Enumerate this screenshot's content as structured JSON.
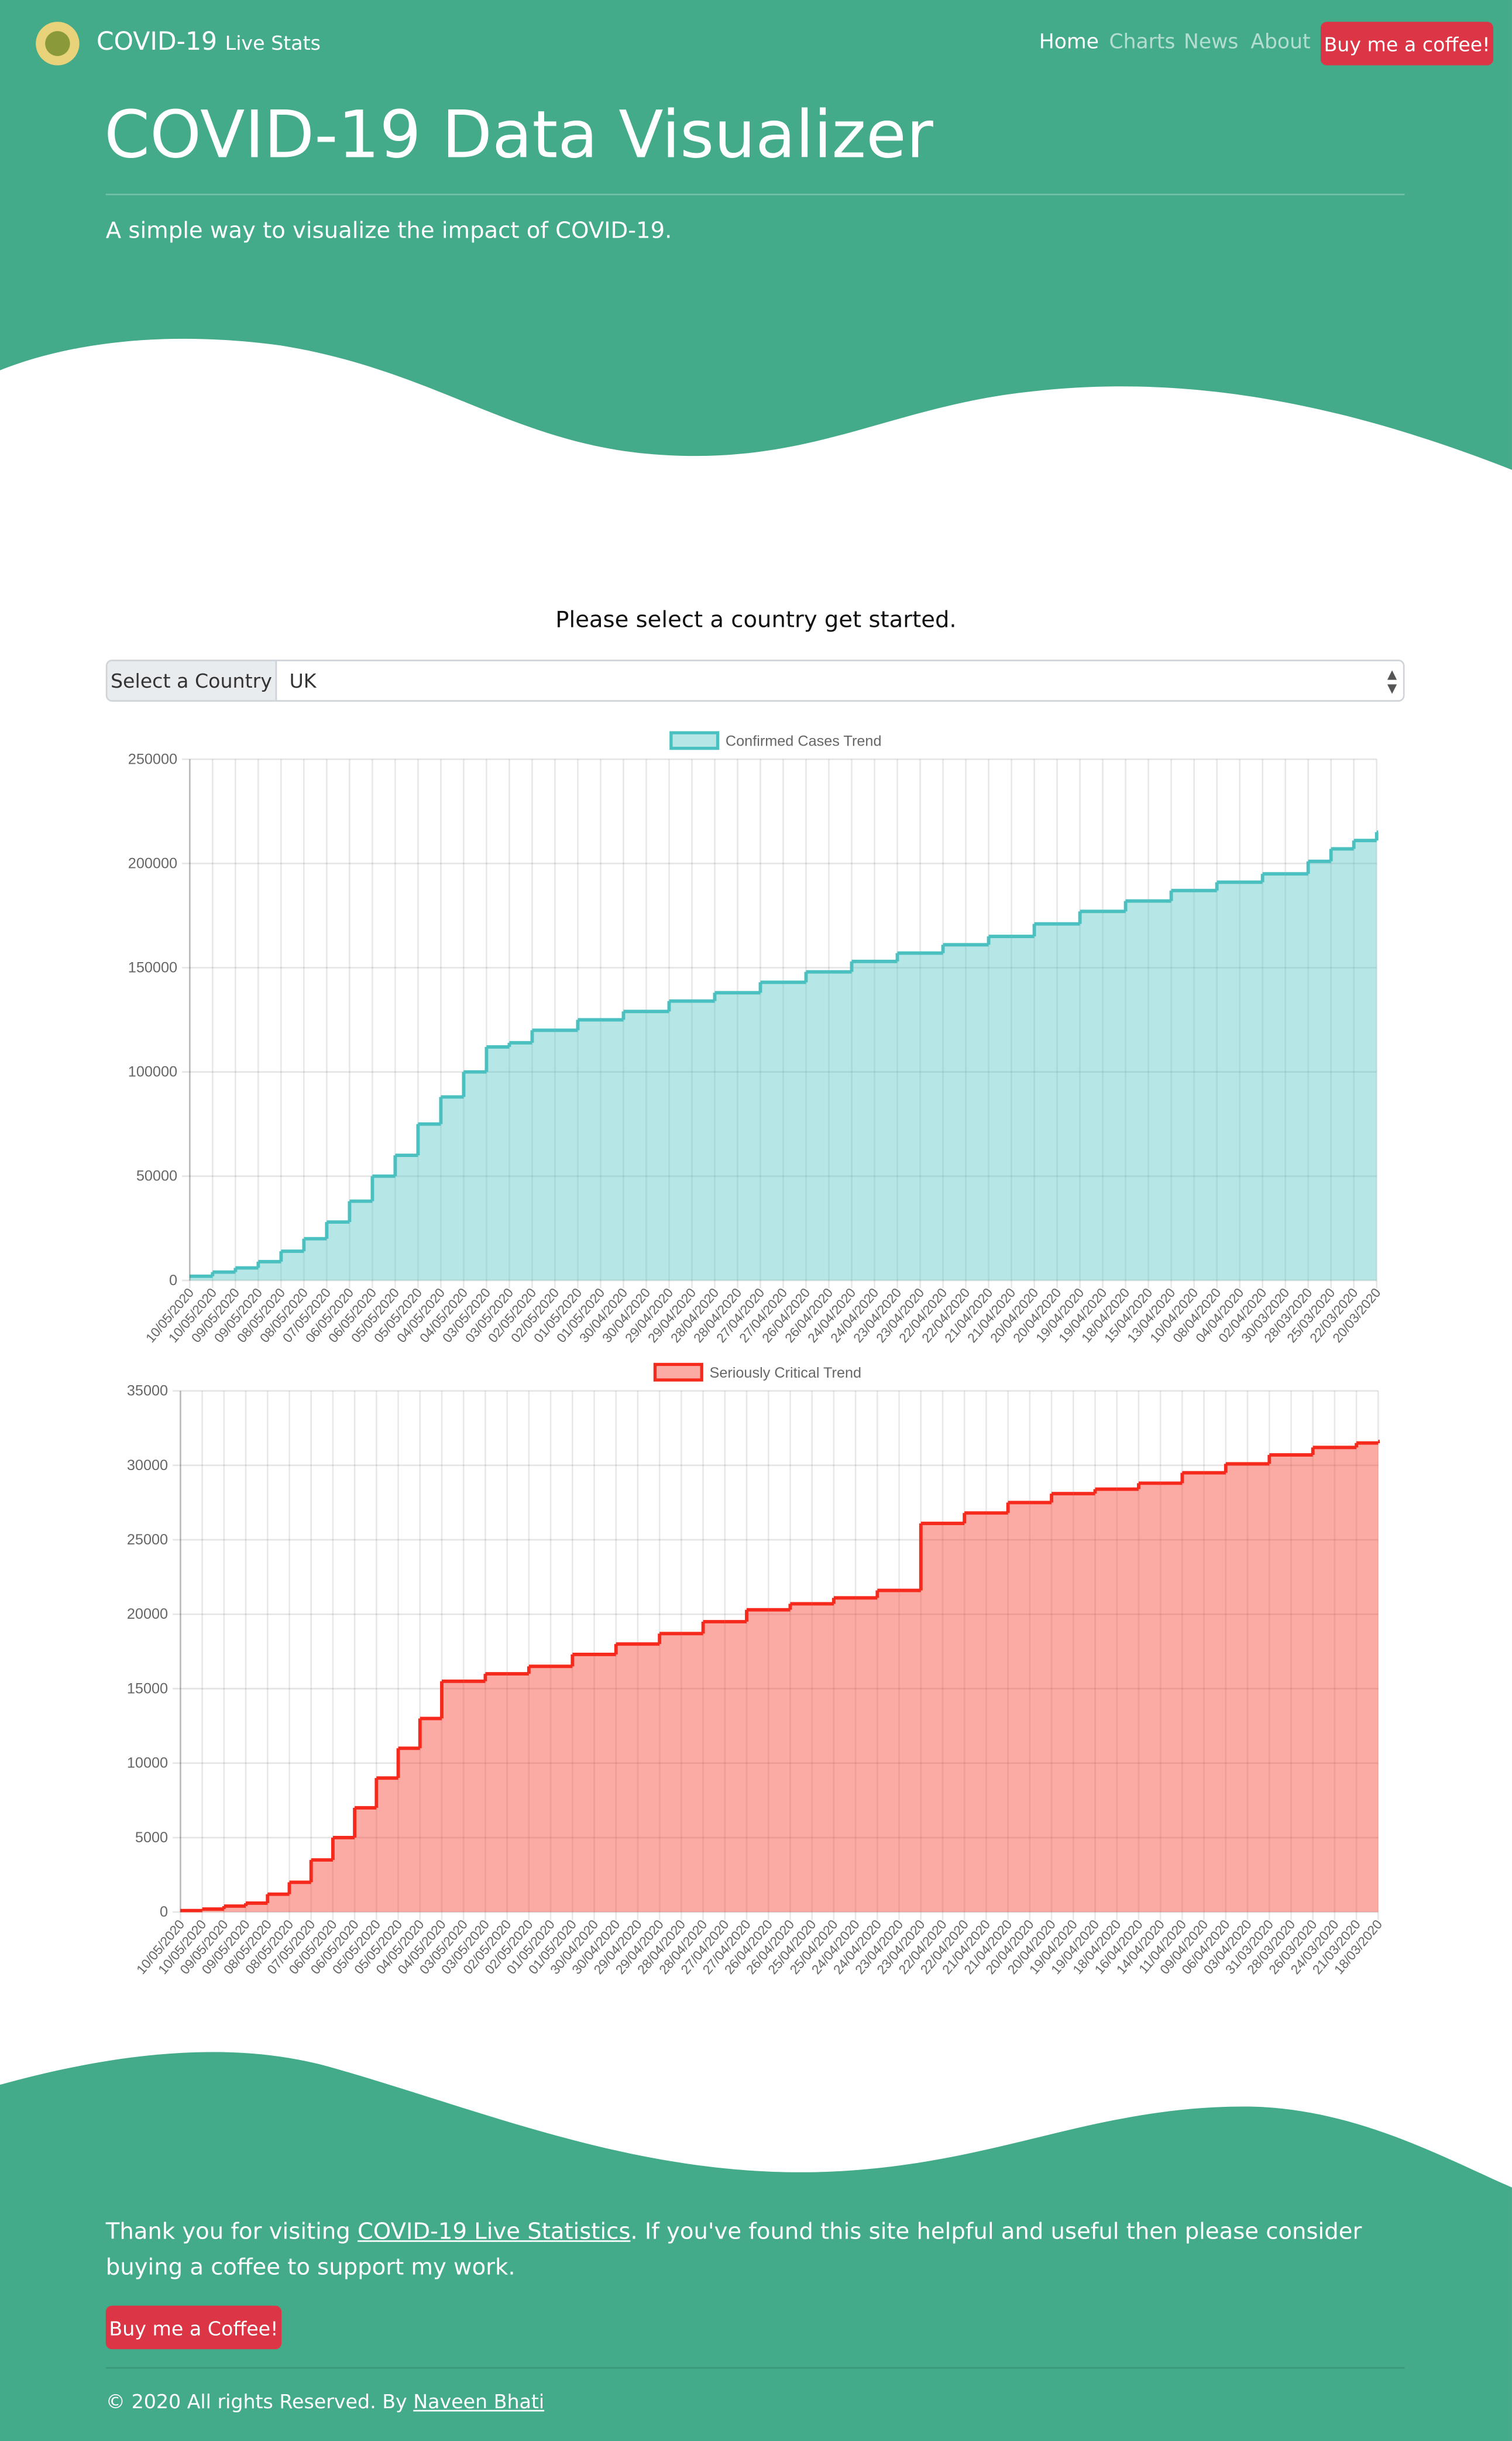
{
  "nav": {
    "brand": "COVID-19",
    "brand_sub": "Live Stats",
    "links": [
      "Home",
      "Charts",
      "News",
      "About"
    ],
    "button": "Buy me a coffee!"
  },
  "hero": {
    "title": "COVID-19 Data Visualizer",
    "subtitle": "A simple way to visualize the impact of COVID-19."
  },
  "selector": {
    "prompt": "Please select a country get started.",
    "label": "Select a Country",
    "value": "UK"
  },
  "chart_data": [
    {
      "type": "line",
      "stepped": true,
      "color": "#4bc0c0",
      "legend": "Confirmed Cases Trend",
      "grid": true,
      "categories": [
        "10/05/2020",
        "10/05/2020",
        "09/05/2020",
        "09/05/2020",
        "08/05/2020",
        "08/05/2020",
        "07/05/2020",
        "06/05/2020",
        "06/05/2020",
        "05/05/2020",
        "05/05/2020",
        "04/05/2020",
        "04/05/2020",
        "03/05/2020",
        "03/05/2020",
        "02/05/2020",
        "02/05/2020",
        "01/05/2020",
        "01/05/2020",
        "30/04/2020",
        "30/04/2020",
        "29/04/2020",
        "29/04/2020",
        "28/04/2020",
        "28/04/2020",
        "27/04/2020",
        "27/04/2020",
        "26/04/2020",
        "26/04/2020",
        "24/04/2020",
        "24/04/2020",
        "23/04/2020",
        "23/04/2020",
        "22/04/2020",
        "22/04/2020",
        "21/04/2020",
        "21/04/2020",
        "20/04/2020",
        "20/04/2020",
        "19/04/2020",
        "19/04/2020",
        "18/04/2020",
        "15/04/2020",
        "13/04/2020",
        "10/04/2020",
        "08/04/2020",
        "04/04/2020",
        "02/04/2020",
        "30/03/2020",
        "28/03/2020",
        "25/03/2020",
        "22/03/2020",
        "20/03/2020"
      ],
      "values": [
        2000,
        4000,
        6000,
        9000,
        14000,
        20000,
        28000,
        38000,
        50000,
        60000,
        75000,
        88000,
        100000,
        112000,
        114000,
        120000,
        120000,
        125000,
        125000,
        129000,
        129000,
        134000,
        134000,
        138000,
        138000,
        143000,
        143000,
        148000,
        148000,
        153000,
        153000,
        157000,
        157000,
        161000,
        161000,
        165000,
        165000,
        171000,
        171000,
        177000,
        177000,
        182000,
        182000,
        187000,
        187000,
        191000,
        191000,
        195000,
        195000,
        201000,
        207000,
        211000,
        215000
      ],
      "ylim": [
        0,
        250000
      ],
      "yticks": [
        0,
        50000,
        100000,
        150000,
        200000,
        250000
      ]
    },
    {
      "type": "line",
      "stepped": true,
      "color": "#f52a1c",
      "legend": "Seriously Critical Trend",
      "grid": true,
      "categories": [
        "10/05/2020",
        "10/05/2020",
        "09/05/2020",
        "09/05/2020",
        "08/05/2020",
        "08/05/2020",
        "07/05/2020",
        "06/05/2020",
        "06/05/2020",
        "05/05/2020",
        "05/05/2020",
        "04/05/2020",
        "04/05/2020",
        "03/05/2020",
        "03/05/2020",
        "02/05/2020",
        "02/05/2020",
        "01/05/2020",
        "01/05/2020",
        "30/04/2020",
        "30/04/2020",
        "29/04/2020",
        "29/04/2020",
        "28/04/2020",
        "28/04/2020",
        "27/04/2020",
        "27/04/2020",
        "26/04/2020",
        "26/04/2020",
        "25/04/2020",
        "25/04/2020",
        "24/04/2020",
        "24/04/2020",
        "23/04/2020",
        "23/04/2020",
        "22/04/2020",
        "22/04/2020",
        "21/04/2020",
        "21/04/2020",
        "20/04/2020",
        "20/04/2020",
        "19/04/2020",
        "19/04/2020",
        "18/04/2020",
        "16/04/2020",
        "14/04/2020",
        "11/04/2020",
        "09/04/2020",
        "06/04/2020",
        "03/04/2020",
        "31/03/2020",
        "28/03/2020",
        "26/03/2020",
        "24/03/2020",
        "21/03/2020",
        "18/03/2020"
      ],
      "values": [
        100,
        200,
        400,
        600,
        1200,
        2000,
        3500,
        5000,
        7000,
        9000,
        11000,
        13000,
        15500,
        15500,
        16000,
        16000,
        16500,
        16500,
        17300,
        17300,
        18000,
        18000,
        18700,
        18700,
        19500,
        19500,
        20300,
        20300,
        20700,
        20700,
        21100,
        21100,
        21600,
        21600,
        26100,
        26100,
        26800,
        26800,
        27500,
        27500,
        28100,
        28100,
        28400,
        28400,
        28800,
        28800,
        29500,
        29500,
        30100,
        30100,
        30700,
        30700,
        31200,
        31200,
        31500,
        31600
      ],
      "ylim": [
        0,
        35000
      ],
      "yticks": [
        0,
        5000,
        10000,
        15000,
        20000,
        25000,
        30000,
        35000
      ]
    }
  ],
  "footer": {
    "text_before": "Thank you for visiting",
    "link": "COVID-19 Live Statistics",
    "text_after": ". If you've found this site helpful and useful then please consider buying a coffee to support my work.",
    "button": "Buy me a Coffee!",
    "copyright": "© 2020 All rights Reserved. By",
    "author": "Naveen Bhati"
  }
}
